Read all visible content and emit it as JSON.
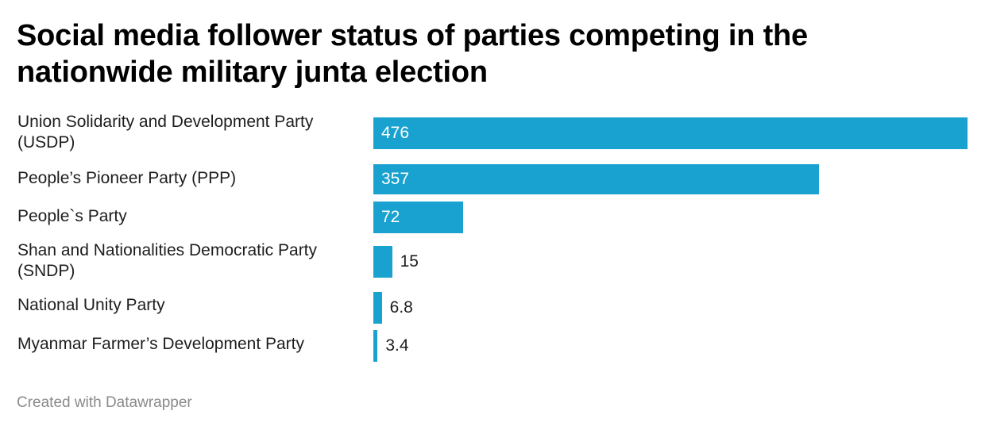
{
  "chart_data": {
    "type": "bar",
    "orientation": "horizontal",
    "title": "Social media follower status of parties competing in the nationwide military junta election",
    "categories": [
      "Union Solidarity and Development Party (USDP)",
      "People’s Pioneer Party (PPP)",
      "People`s Party",
      "Shan and Nationalities Democratic Party (SNDP)",
      "National Unity Party",
      "Myanmar Farmer’s Development Party"
    ],
    "values": [
      476,
      357,
      72,
      15,
      6.8,
      3.4
    ],
    "value_labels": [
      "476",
      "357",
      "72",
      "15",
      "6.8",
      "3.4"
    ],
    "xlim": [
      0,
      476
    ],
    "grid": false,
    "legend": "none",
    "bar_color": "#19a2cf"
  },
  "footer": {
    "credit": "Created with Datawrapper"
  }
}
